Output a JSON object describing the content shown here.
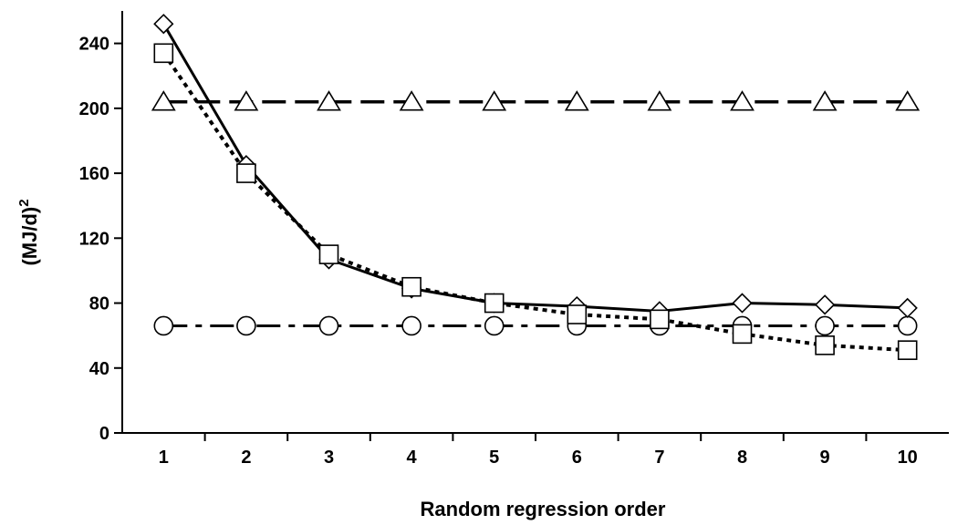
{
  "chart_data": {
    "type": "line",
    "title": "",
    "xlabel": "Random regression order",
    "ylabel": "(MJ/d)",
    "ylabel_superscript": "2",
    "x": [
      1,
      2,
      3,
      4,
      5,
      6,
      7,
      8,
      9,
      10
    ],
    "xlim": [
      0.5,
      10.5
    ],
    "ylim": [
      0,
      260
    ],
    "yticks": [
      0,
      40,
      80,
      120,
      160,
      200,
      240
    ],
    "grid": false,
    "legend": "none",
    "series": [
      {
        "marker": "diamond",
        "line": "solid",
        "color": "#000000",
        "values": [
          252,
          165,
          107,
          89,
          80,
          78,
          75,
          80,
          79,
          77
        ]
      },
      {
        "marker": "square",
        "line": "dotted",
        "color": "#000000",
        "values": [
          234,
          160,
          110,
          90,
          80,
          73,
          70,
          61,
          54,
          51
        ]
      },
      {
        "marker": "triangle",
        "line": "long-dash",
        "color": "#000000",
        "values": [
          204,
          204,
          204,
          204,
          204,
          204,
          204,
          204,
          204,
          204
        ]
      },
      {
        "marker": "circle",
        "line": "dash-dot",
        "color": "#000000",
        "values": [
          66,
          66,
          66,
          66,
          66,
          66,
          66,
          66,
          66,
          66
        ]
      }
    ]
  }
}
